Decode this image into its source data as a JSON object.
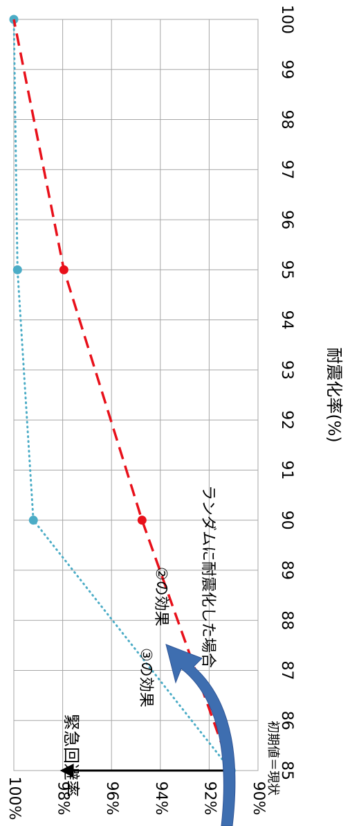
{
  "chart_data": {
    "type": "line",
    "orientation": "rotated-90-clockwise",
    "xlabel": "耐震化率(%)",
    "ylabel": "緊急回避率",
    "x_ticks": [
      "85",
      "86",
      "87",
      "88",
      "89",
      "90",
      "91",
      "92",
      "93",
      "94",
      "95",
      "96",
      "97",
      "98",
      "99",
      "100"
    ],
    "xlim": [
      85,
      100
    ],
    "y_ticks": [
      "90%",
      "92%",
      "94%",
      "96%",
      "98%",
      "100%"
    ],
    "ylim": [
      90,
      100
    ],
    "grid": true,
    "series": [
      {
        "name": "",
        "style": "dotted",
        "color": "#4bacc6",
        "x": [
          85,
          90,
          95,
          100
        ],
        "y": [
          91.1,
          99.2,
          99.85,
          100
        ]
      },
      {
        "name": "ランダムに耐震化した場合",
        "style": "dashed",
        "color": "#e8101a",
        "x": [
          85,
          90,
          95,
          100
        ],
        "y": [
          91.1,
          94.75,
          97.95,
          100
        ]
      }
    ],
    "annotations": {
      "random_label": "ランダムに耐震化した場合",
      "effect2": "②の効果",
      "effect3": "③の効果",
      "initial": "初期値＝現状"
    },
    "arrow_colors": {
      "black_arrow": "#000000",
      "blue_arrow": "#3e6eb0"
    }
  }
}
